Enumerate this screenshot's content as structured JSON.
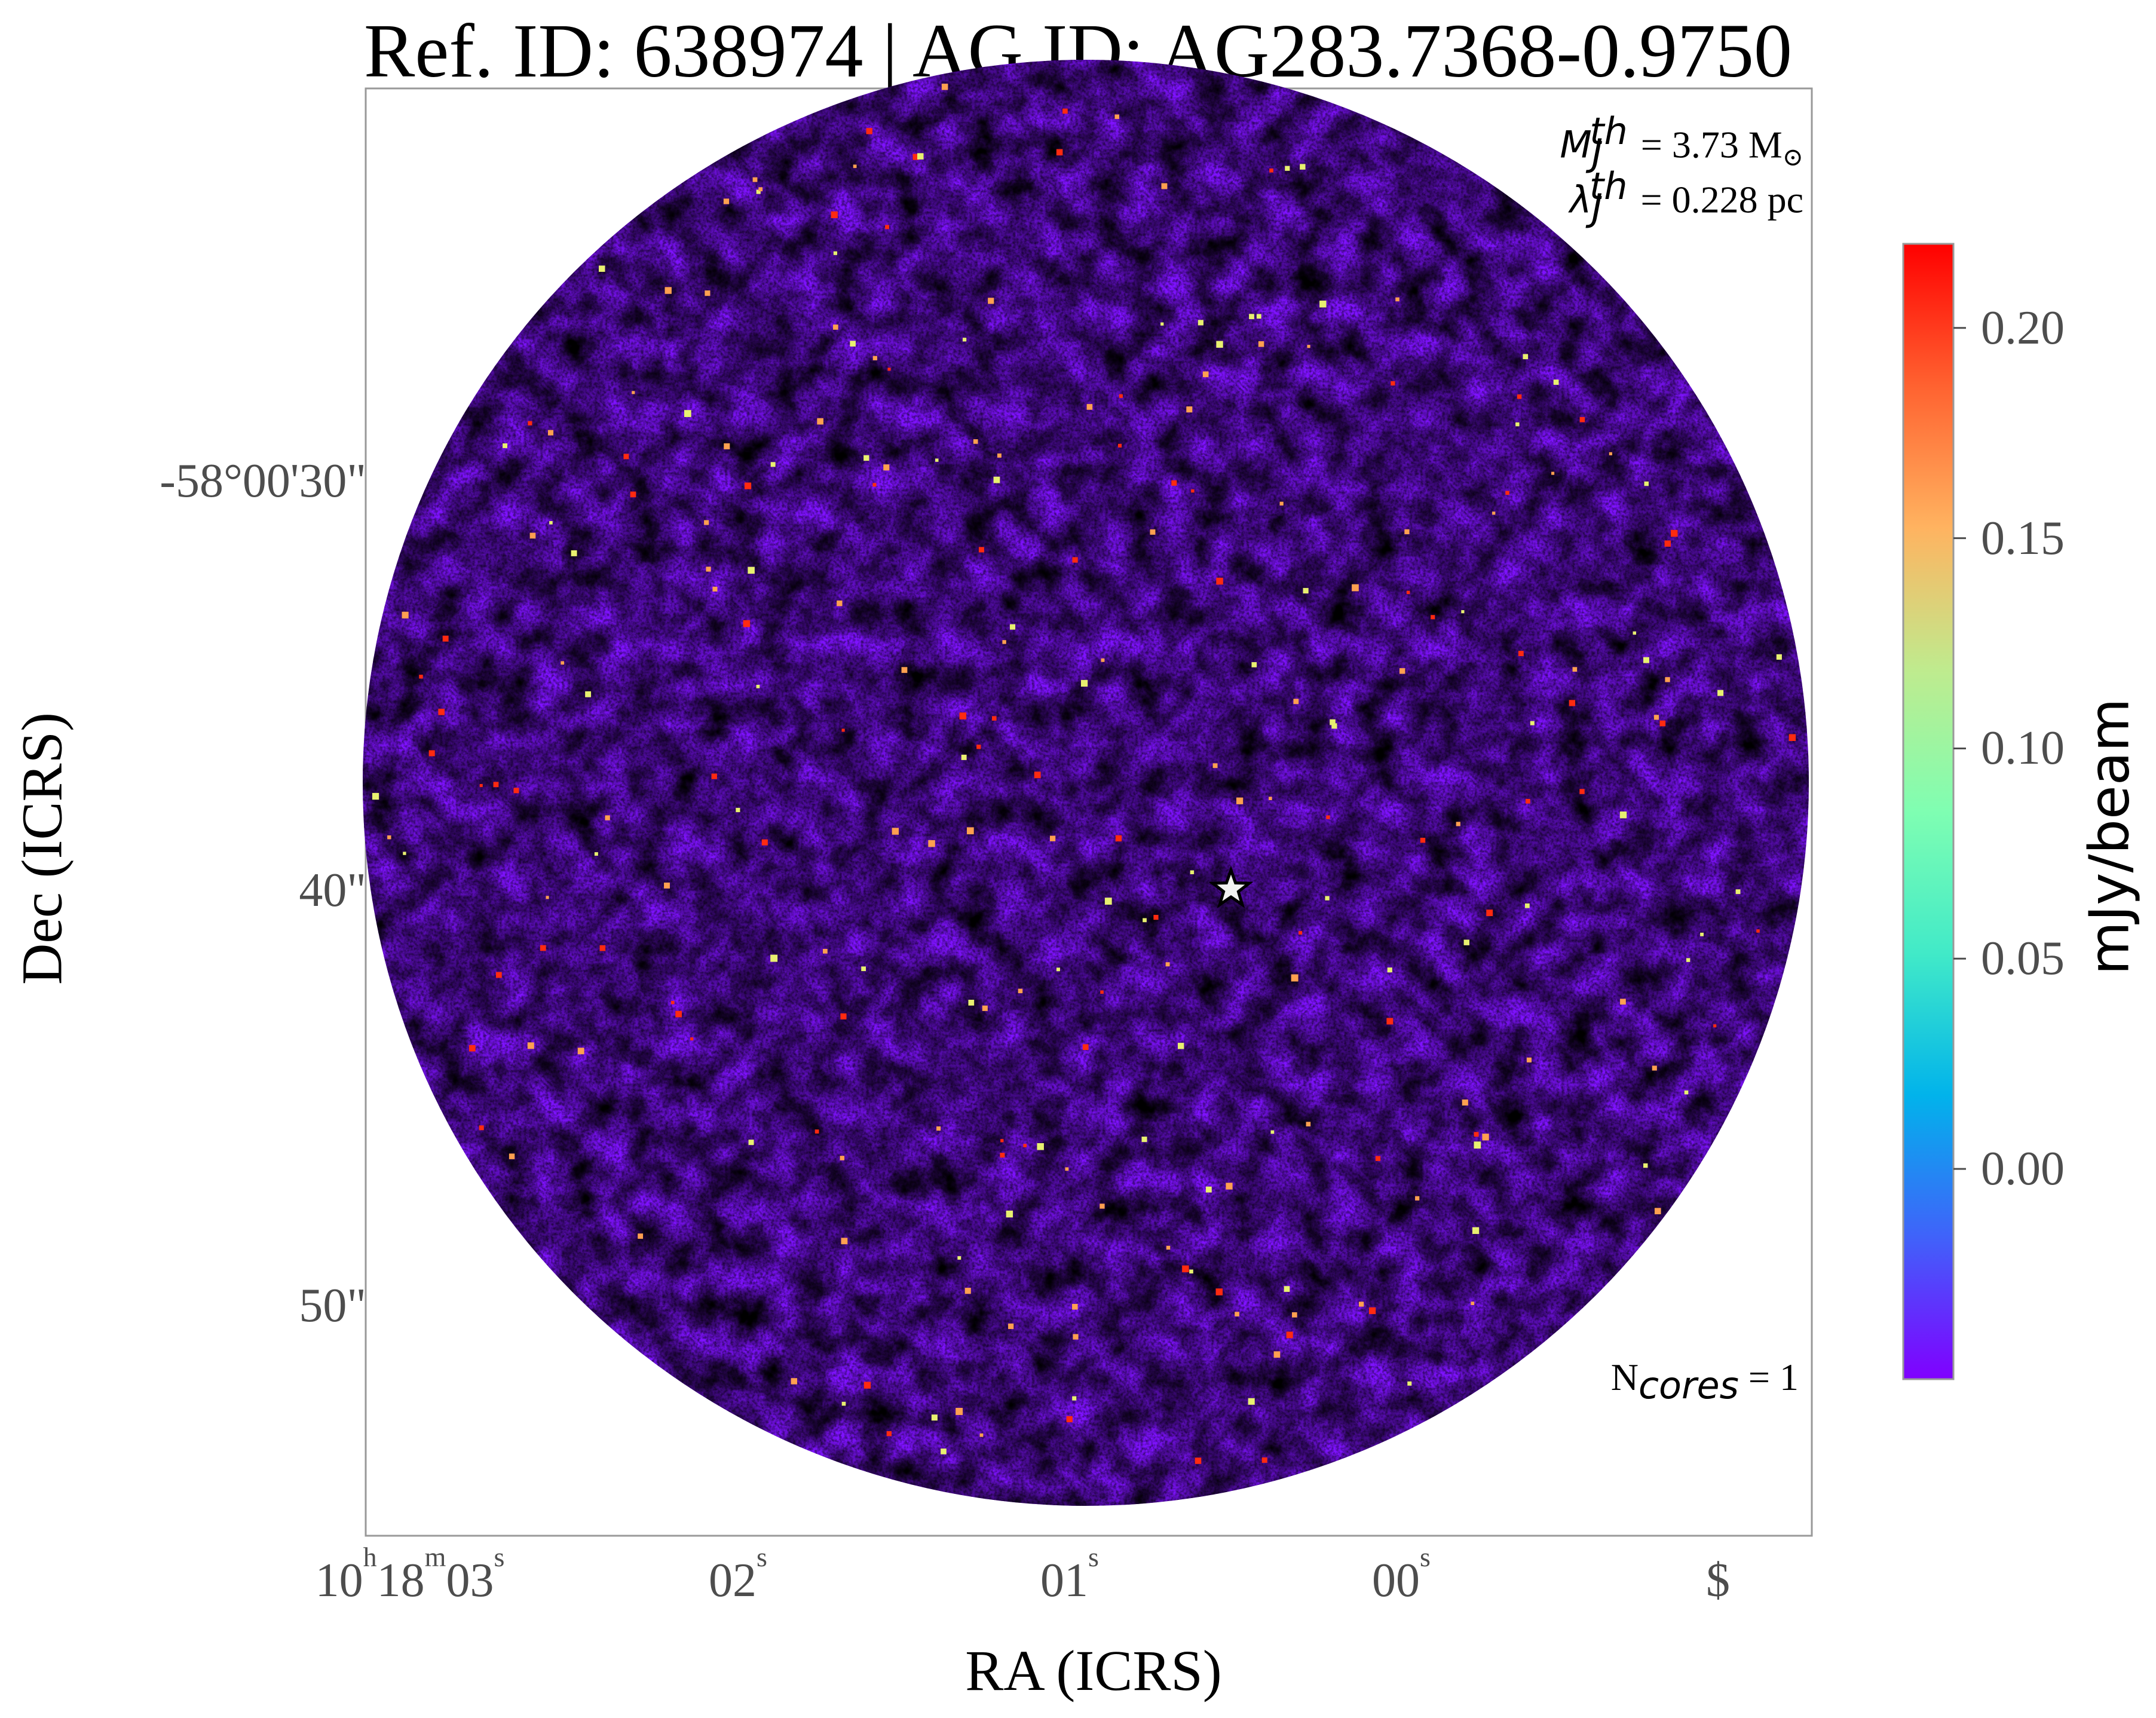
{
  "chart_data": {
    "type": "heatmap",
    "title": "Ref. ID: 638974 | AG ID: AG283.7368-0.9750",
    "xlabel": "RA (ICRS)",
    "ylabel": "Dec (ICRS)",
    "x_ticks": [
      {
        "main": "10",
        "unit1": "h",
        "mid": "18",
        "unit2": "m",
        "last": "03",
        "unit3": "s"
      },
      {
        "main": "02",
        "unit1": "s"
      },
      {
        "main": "01",
        "unit1": "s"
      },
      {
        "main": "00",
        "unit1": "s"
      },
      {
        "main": "$",
        "unit1": ""
      }
    ],
    "y_ticks": [
      "-58°00'30\"",
      "40\"",
      "50\""
    ],
    "colorbar": {
      "label": "mJy/beam",
      "ticks": [
        "0.20",
        "0.15",
        "0.10",
        "0.05",
        "0.00"
      ],
      "tick_values": [
        0.2,
        0.15,
        0.1,
        0.05,
        0.0
      ],
      "range": [
        -0.05,
        0.22
      ],
      "colormap": "rainbow",
      "colors": [
        "#8000ff",
        "#4062fa",
        "#01b3eb",
        "#41eac8",
        "#7ffeb2",
        "#bfeb8e",
        "#ffb360",
        "#ff6230",
        "#ff0000"
      ]
    },
    "annotations": {
      "mj_symbol": "M",
      "mj_sub": "J",
      "mj_sup": "th",
      "mj_value": "= 3.73 M",
      "mj_unit_symbol": "⊙",
      "lambda_symbol": "λ",
      "lambda_sub": "J",
      "lambda_sup": "th",
      "lambda_value": "= 0.228 pc",
      "ncores_symbol": "N",
      "ncores_sub": "cores",
      "ncores_value": " = 1"
    },
    "field": "circular primary beam, noise-dominated emission",
    "marker": "star",
    "grid": false
  }
}
